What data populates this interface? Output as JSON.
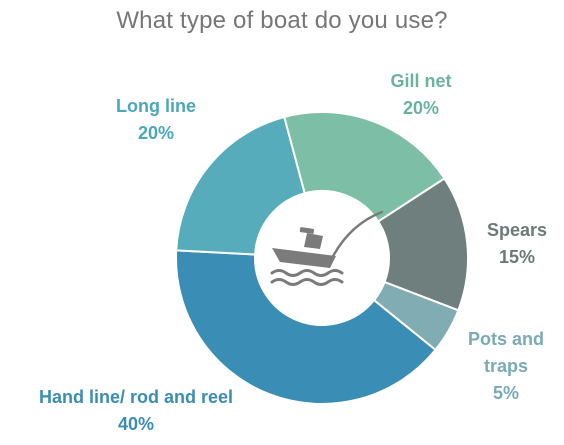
{
  "chart_data": {
    "type": "pie",
    "title": "What type of boat do you use?",
    "categories": [
      "Gill net",
      "Spears",
      "Pots and traps",
      "Hand line/ rod and reel",
      "Long line"
    ],
    "values": [
      20,
      15,
      5,
      40,
      20
    ],
    "unit": "%",
    "value_labels": [
      "20%",
      "15%",
      "5%",
      "40%",
      "20%"
    ],
    "label_lines": [
      [
        "Gill net",
        "20%"
      ],
      [
        "Spears",
        "15%"
      ],
      [
        "Pots and",
        "traps",
        "5%"
      ],
      [
        "Hand line/ rod and reel",
        "40%"
      ],
      [
        "Long line",
        "20%"
      ]
    ],
    "colors": [
      "#7dbfa6",
      "#6f7f7d",
      "#82acb3",
      "#3a8db4",
      "#56acbb"
    ],
    "label_colors": [
      "#6ab49a",
      "#6c7a78",
      "#7aaab3",
      "#3a8db4",
      "#4aa8bc"
    ],
    "donut": true,
    "center_icon": "fishing-boat-icon",
    "legend": "none"
  }
}
